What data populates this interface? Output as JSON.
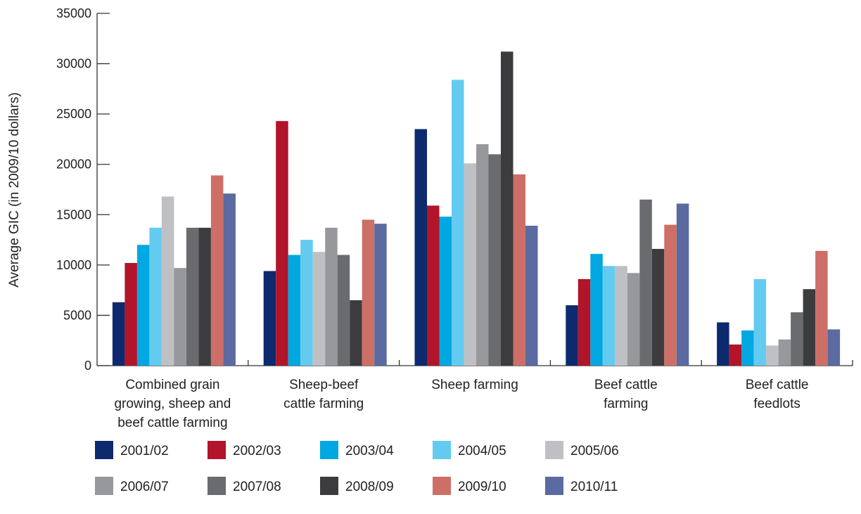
{
  "chart_data": {
    "type": "bar",
    "ylabel": "Average GIC (in 2009/10 dollars)",
    "ylim": [
      0,
      35000
    ],
    "yticks": [
      0,
      5000,
      10000,
      15000,
      20000,
      25000,
      30000,
      35000
    ],
    "grid": false,
    "legend_position": "bottom",
    "categories": [
      [
        "Combined grain",
        "growing, sheep and",
        "beef cattle farming"
      ],
      [
        "Sheep-beef",
        "cattle farming"
      ],
      [
        "Sheep farming"
      ],
      [
        "Beef cattle",
        "farming"
      ],
      [
        "Beef cattle",
        "feedlots"
      ]
    ],
    "series": [
      {
        "name": "2001/02",
        "color": "#0e2a6e",
        "values": [
          6300,
          9400,
          23500,
          6000,
          4300
        ]
      },
      {
        "name": "2002/03",
        "color": "#b2142a",
        "values": [
          10200,
          24300,
          15900,
          8600,
          2100
        ]
      },
      {
        "name": "2003/04",
        "color": "#00a7e1",
        "values": [
          12000,
          11000,
          14800,
          11100,
          3500
        ]
      },
      {
        "name": "2004/05",
        "color": "#64cbf0",
        "values": [
          13700,
          12500,
          28400,
          9900,
          8600
        ]
      },
      {
        "name": "2005/06",
        "color": "#bfc0c4",
        "values": [
          16800,
          11300,
          20100,
          9900,
          2000
        ]
      },
      {
        "name": "2006/07",
        "color": "#97989b",
        "values": [
          9700,
          13700,
          22000,
          9200,
          2600
        ]
      },
      {
        "name": "2007/08",
        "color": "#6a6b6e",
        "values": [
          13700,
          11000,
          21000,
          16500,
          5300
        ]
      },
      {
        "name": "2008/09",
        "color": "#3c3c3e",
        "values": [
          13700,
          6500,
          31200,
          11600,
          7600
        ]
      },
      {
        "name": "2009/10",
        "color": "#cd6f66",
        "values": [
          18900,
          14500,
          19000,
          14000,
          11400
        ]
      },
      {
        "name": "2010/11",
        "color": "#5b6aa0",
        "values": [
          17100,
          14100,
          13900,
          16100,
          3600
        ]
      }
    ]
  }
}
